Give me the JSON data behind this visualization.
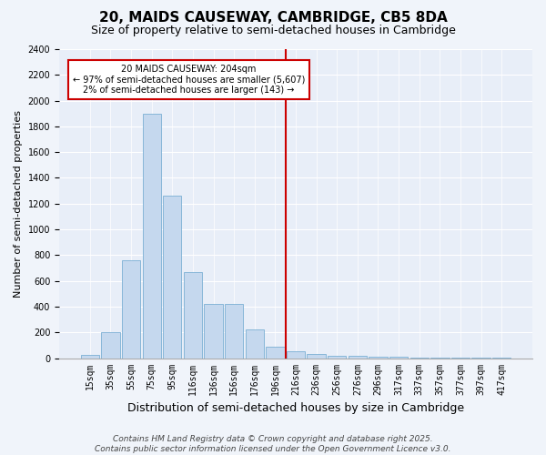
{
  "title": "20, MAIDS CAUSEWAY, CAMBRIDGE, CB5 8DA",
  "subtitle": "Size of property relative to semi-detached houses in Cambridge",
  "xlabel": "Distribution of semi-detached houses by size in Cambridge",
  "ylabel": "Number of semi-detached properties",
  "categories": [
    "15sqm",
    "35sqm",
    "55sqm",
    "75sqm",
    "95sqm",
    "116sqm",
    "136sqm",
    "156sqm",
    "176sqm",
    "196sqm",
    "216sqm",
    "236sqm",
    "256sqm",
    "276sqm",
    "296sqm",
    "317sqm",
    "337sqm",
    "357sqm",
    "377sqm",
    "397sqm",
    "417sqm"
  ],
  "bar_values": [
    25,
    200,
    760,
    1900,
    1260,
    670,
    420,
    420,
    220,
    90,
    50,
    30,
    20,
    15,
    10,
    10,
    5,
    5,
    5,
    3,
    2
  ],
  "bar_color": "#c5d8ee",
  "bar_edge_color": "#7bafd4",
  "vline_x_index": 9,
  "vline_color": "#cc0000",
  "annotation_text": "20 MAIDS CAUSEWAY: 204sqm\n← 97% of semi-detached houses are smaller (5,607)\n2% of semi-detached houses are larger (143) →",
  "annotation_box_edge_color": "#cc0000",
  "ylim": [
    0,
    2400
  ],
  "yticks": [
    0,
    200,
    400,
    600,
    800,
    1000,
    1200,
    1400,
    1600,
    1800,
    2000,
    2200,
    2400
  ],
  "bg_color": "#f0f4fa",
  "plot_bg_color": "#e8eef8",
  "title_fontsize": 11,
  "subtitle_fontsize": 9,
  "tick_fontsize": 7,
  "ylabel_fontsize": 8,
  "xlabel_fontsize": 9,
  "footer_line1": "Contains HM Land Registry data © Crown copyright and database right 2025.",
  "footer_line2": "Contains public sector information licensed under the Open Government Licence v3.0.",
  "footer_fontsize": 6.5
}
